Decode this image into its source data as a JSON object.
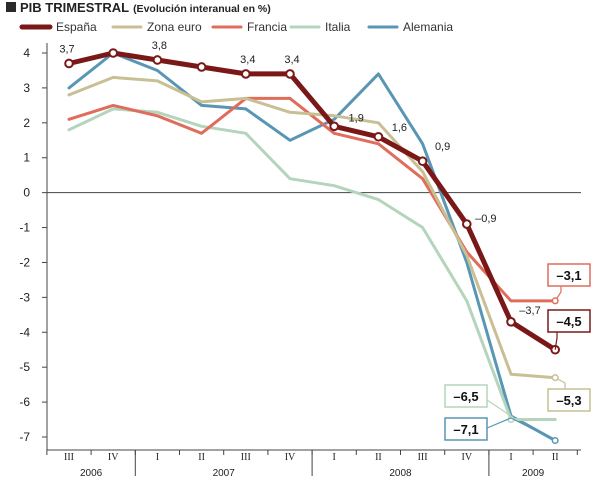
{
  "chart_data": {
    "type": "line",
    "title": "PIB TRIMESTRAL",
    "subtitle": "(Evolución interanual en %)",
    "ylim": [
      -7,
      4
    ],
    "yticks": [
      "4",
      "3",
      "2",
      "1",
      "0",
      "-1",
      "-2",
      "-3",
      "-4",
      "-5",
      "-6",
      "-7"
    ],
    "categories": [
      "III",
      "IV",
      "I",
      "II",
      "III",
      "IV",
      "I",
      "II",
      "III",
      "IV",
      "I",
      "II"
    ],
    "years": [
      {
        "label": "2006",
        "from": 0,
        "to": 1
      },
      {
        "label": "2007",
        "from": 2,
        "to": 5
      },
      {
        "label": "2008",
        "from": 6,
        "to": 9
      },
      {
        "label": "2009",
        "from": 10,
        "to": 11
      }
    ],
    "grid": false,
    "legend_position": "top",
    "series": [
      {
        "name": "España",
        "color": "#7a1818",
        "values": [
          3.7,
          4.0,
          3.8,
          3.6,
          3.4,
          3.4,
          1.9,
          1.6,
          0.9,
          -0.9,
          -3.7,
          -4.5
        ]
      },
      {
        "name": "Zona euro",
        "color": "#c8bf94",
        "values": [
          2.8,
          3.3,
          3.2,
          2.6,
          2.7,
          2.3,
          2.2,
          2.0,
          0.6,
          -1.8,
          -5.2,
          -5.3
        ]
      },
      {
        "name": "Francia",
        "color": "#e06c5c",
        "values": [
          2.1,
          2.5,
          2.2,
          1.7,
          2.7,
          2.7,
          1.7,
          1.4,
          0.4,
          -1.7,
          -3.1,
          -3.1
        ]
      },
      {
        "name": "Italia",
        "color": "#b3d5bc",
        "values": [
          1.8,
          2.4,
          2.3,
          1.9,
          1.7,
          0.4,
          0.2,
          -0.2,
          -1.0,
          -3.1,
          -6.5,
          -6.5
        ]
      },
      {
        "name": "Alemania",
        "color": "#5996b4",
        "values": [
          3.0,
          4.0,
          3.5,
          2.5,
          2.4,
          1.5,
          2.1,
          3.4,
          1.4,
          -2.0,
          -6.4,
          -7.1
        ]
      }
    ],
    "data_labels": [
      "3,7",
      "3,8",
      "3,4",
      "3,4",
      "1,9",
      "1,6",
      "0,9",
      "–0,9",
      "–3,7"
    ],
    "callouts": [
      {
        "series": "Francia",
        "text": "–3,1",
        "color": "#e06c5c"
      },
      {
        "series": "España",
        "text": "–4,5",
        "color": "#7a1818"
      },
      {
        "series": "Zona euro",
        "text": "–5,3",
        "color": "#c8bf94"
      },
      {
        "series": "Italia",
        "text": "–6,5",
        "color": "#b3d5bc"
      },
      {
        "series": "Alemania",
        "text": "–7,1",
        "color": "#5996b4"
      }
    ]
  }
}
